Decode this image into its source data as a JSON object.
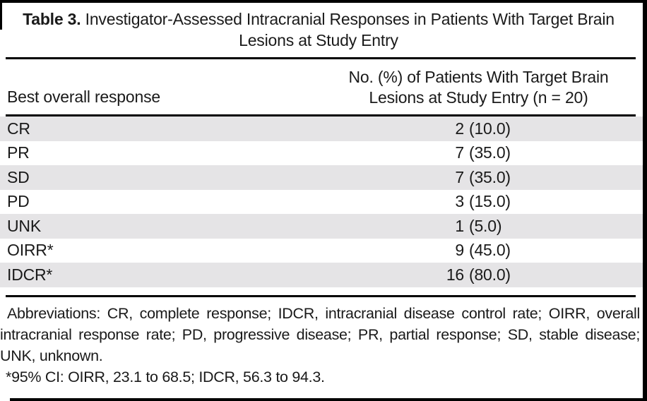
{
  "title": {
    "label": "Table 3.",
    "text": "Investigator-Assessed Intracranial Responses in Patients With Target Brain Lesions at Study Entry"
  },
  "table": {
    "col1_header": "Best overall response",
    "col2_header_line1": "No. (%) of Patients With Target Brain",
    "col2_header_line2": "Lesions at Study Entry (n = 20)",
    "rows": [
      {
        "label": "CR",
        "count": "2",
        "pct": "(10.0)"
      },
      {
        "label": "PR",
        "count": "7",
        "pct": "(35.0)"
      },
      {
        "label": "SD",
        "count": "7",
        "pct": "(35.0)"
      },
      {
        "label": "PD",
        "count": "3",
        "pct": "(15.0)"
      },
      {
        "label": "UNK",
        "count": "1",
        "pct": "(5.0)"
      },
      {
        "label": "OIRR*",
        "count": "9",
        "pct": "(45.0)"
      },
      {
        "label": "IDCR*",
        "count": "16",
        "pct": "(80.0)"
      }
    ]
  },
  "footnotes": {
    "abbreviations": "Abbreviations: CR, complete response; IDCR, intracranial disease control rate; OIRR, overall intracranial response rate; PD, progressive disease; PR, partial response; SD, stable disease; UNK, unknown.",
    "ci": "*95% CI: OIRR, 23.1 to 68.5; IDCR, 56.3 to 94.3."
  },
  "colors": {
    "row_shade": "#e5e4e6",
    "rule": "#000000",
    "background": "#ffffff"
  }
}
